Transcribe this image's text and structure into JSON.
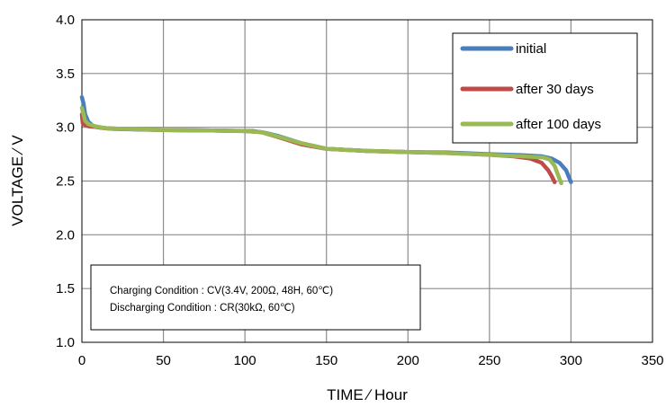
{
  "chart_data": {
    "type": "line",
    "xlabel": "TIME ∕ Hour",
    "ylabel": "VOLTAGE ∕ V",
    "xlim": [
      0,
      350
    ],
    "ylim": [
      1.0,
      4.0
    ],
    "x_ticks": [
      "0",
      "50",
      "100",
      "150",
      "200",
      "250",
      "300",
      "350"
    ],
    "y_ticks": [
      "1.0",
      "1.5",
      "2.0",
      "2.5",
      "3.0",
      "3.5",
      "4.0"
    ],
    "grid": true,
    "legend_position": "top-right",
    "series": [
      {
        "name": "initial",
        "color": "#4a7ebb",
        "x": [
          0,
          1,
          2,
          4,
          7,
          12,
          20,
          50,
          80,
          105,
          112,
          120,
          135,
          150,
          175,
          200,
          225,
          250,
          270,
          282,
          288,
          293,
          297,
          300
        ],
        "y": [
          3.28,
          3.22,
          3.12,
          3.05,
          3.01,
          2.995,
          2.985,
          2.975,
          2.97,
          2.965,
          2.95,
          2.92,
          2.85,
          2.8,
          2.78,
          2.77,
          2.765,
          2.75,
          2.74,
          2.73,
          2.71,
          2.67,
          2.6,
          2.49
        ]
      },
      {
        "name": "after 30 days",
        "color": "#be4b48",
        "x": [
          0,
          0.5,
          1,
          2,
          4,
          8,
          15,
          50,
          80,
          100,
          110,
          120,
          135,
          150,
          175,
          200,
          225,
          250,
          265,
          275,
          282,
          286,
          288,
          290
        ],
        "y": [
          3.12,
          3.04,
          3.03,
          3.02,
          3.01,
          3.005,
          2.99,
          2.975,
          2.97,
          2.965,
          2.955,
          2.91,
          2.84,
          2.8,
          2.78,
          2.77,
          2.76,
          2.745,
          2.73,
          2.71,
          2.67,
          2.6,
          2.55,
          2.49
        ]
      },
      {
        "name": "after 100 days",
        "color": "#98b954",
        "x": [
          0,
          1,
          2,
          4,
          8,
          15,
          50,
          80,
          100,
          110,
          120,
          135,
          150,
          175,
          200,
          225,
          250,
          270,
          283,
          287,
          290,
          292,
          294
        ],
        "y": [
          3.18,
          3.12,
          3.06,
          3.03,
          3.01,
          2.99,
          2.975,
          2.97,
          2.965,
          2.955,
          2.915,
          2.85,
          2.8,
          2.78,
          2.77,
          2.76,
          2.745,
          2.73,
          2.72,
          2.7,
          2.64,
          2.56,
          2.48
        ]
      }
    ],
    "annotation": {
      "line1": "Charging Condition : CV(3.4V, 200Ω, 48H, 60℃)",
      "line2": "Discharging Condition : CR(30kΩ, 60℃)"
    }
  }
}
